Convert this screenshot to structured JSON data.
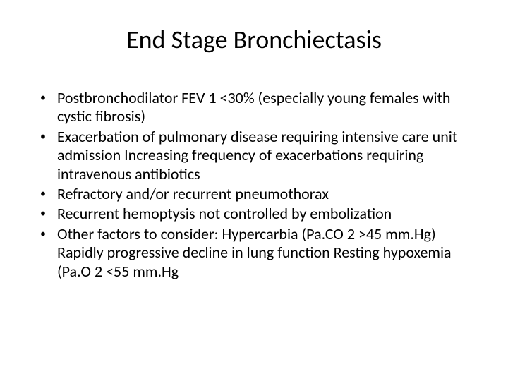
{
  "slide": {
    "title": "End Stage Bronchiectasis",
    "bullets": [
      "Postbronchodilator FEV 1 <30% (especially young females with cystic fibrosis)",
      "Exacerbation of pulmonary disease requiring intensive care unit admission Increasing frequency of exacerbations requiring intravenous antibiotics",
      "Refractory and/or recurrent pneumothorax",
      "Recurrent hemoptysis not controlled by embolization",
      "Other factors to consider: Hypercarbia (Pa.CO 2 >45 mm.Hg) Rapidly progressive decline in lung function Resting hypoxemia (Pa.O 2 <55 mm.Hg"
    ],
    "background_color": "#ffffff",
    "text_color": "#000000",
    "title_fontsize": 36,
    "body_fontsize": 22,
    "font_family": "Calibri"
  }
}
